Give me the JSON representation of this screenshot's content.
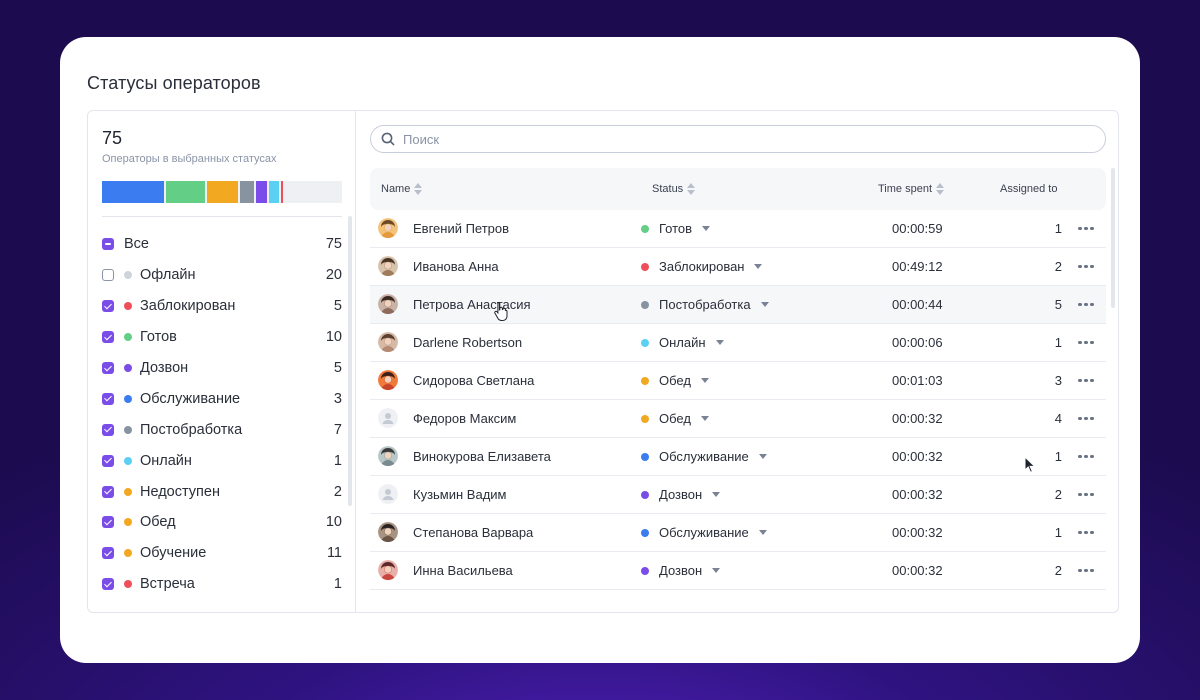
{
  "page": {
    "title": "Статусы операторов"
  },
  "summary": {
    "total": "75",
    "caption": "Операторы в выбранных статусах",
    "bar_segments": [
      {
        "color": "#3b7cf0",
        "fraction": 0.26
      },
      {
        "color": "#63cf86",
        "fraction": 0.16
      },
      {
        "color": "#f3a821",
        "fraction": 0.13
      },
      {
        "color": "#8794a0",
        "fraction": 0.06
      },
      {
        "color": "#7b4de8",
        "fraction": 0.045
      },
      {
        "color": "#5cd0f2",
        "fraction": 0.04
      },
      {
        "color": "#ee4f5a",
        "fraction": 0.01
      }
    ]
  },
  "filters": [
    {
      "label": "Все",
      "count": "75",
      "state": "partial",
      "dot": null
    },
    {
      "label": "Офлайн",
      "count": "20",
      "state": "off",
      "dot": "#cfd3da"
    },
    {
      "label": "Заблокирован",
      "count": "5",
      "state": "on",
      "dot": "#ee4f5a"
    },
    {
      "label": "Готов",
      "count": "10",
      "state": "on",
      "dot": "#63cf86"
    },
    {
      "label": "Дозвон",
      "count": "5",
      "state": "on",
      "dot": "#7b4de8"
    },
    {
      "label": "Обслуживание",
      "count": "3",
      "state": "on",
      "dot": "#3b7cf0"
    },
    {
      "label": "Постобработка",
      "count": "7",
      "state": "on",
      "dot": "#8794a0"
    },
    {
      "label": "Онлайн",
      "count": "1",
      "state": "on",
      "dot": "#5cd0f2"
    },
    {
      "label": "Недоступен",
      "count": "2",
      "state": "on",
      "dot": "#f3a821"
    },
    {
      "label": "Обед",
      "count": "10",
      "state": "on",
      "dot": "#f3a821"
    },
    {
      "label": "Обучение",
      "count": "11",
      "state": "on",
      "dot": "#f3a821"
    },
    {
      "label": "Встреча",
      "count": "1",
      "state": "on",
      "dot": "#ee4f5a"
    }
  ],
  "search": {
    "placeholder": "Поиск",
    "value": ""
  },
  "table": {
    "columns": {
      "name": "Name",
      "status": "Status",
      "time": "Time spent",
      "assigned": "Assigned to"
    },
    "rows": [
      {
        "name": "Евгений Петров",
        "status": "Готов",
        "status_color": "#63cf86",
        "time": "00:00:59",
        "assigned": "1",
        "avatar": "photo-1"
      },
      {
        "name": "Иванова Анна",
        "status": "Заблокирован",
        "status_color": "#ee4f5a",
        "time": "00:49:12",
        "assigned": "2",
        "avatar": "photo-2"
      },
      {
        "name": "Петрова Анастасия",
        "status": "Постобработка",
        "status_color": "#8794a0",
        "time": "00:00:44",
        "assigned": "5",
        "avatar": "photo-3"
      },
      {
        "name": "Darlene Robertson",
        "status": "Онлайн",
        "status_color": "#5cd0f2",
        "time": "00:00:06",
        "assigned": "1",
        "avatar": "photo-4"
      },
      {
        "name": "Сидорова Светлана",
        "status": "Обед",
        "status_color": "#f3a821",
        "time": "00:01:03",
        "assigned": "3",
        "avatar": "photo-5"
      },
      {
        "name": "Федоров Максим",
        "status": "Обед",
        "status_color": "#f3a821",
        "time": "00:00:32",
        "assigned": "4",
        "avatar": "placeholder"
      },
      {
        "name": "Винокурова Елизавета",
        "status": "Обслуживание",
        "status_color": "#3b7cf0",
        "time": "00:00:32",
        "assigned": "1",
        "avatar": "photo-6"
      },
      {
        "name": "Кузьмин Вадим",
        "status": "Дозвон",
        "status_color": "#7b4de8",
        "time": "00:00:32",
        "assigned": "2",
        "avatar": "placeholder"
      },
      {
        "name": "Степанова Варвара",
        "status": "Обслуживание",
        "status_color": "#3b7cf0",
        "time": "00:00:32",
        "assigned": "1",
        "avatar": "photo-7"
      },
      {
        "name": "Инна Васильева",
        "status": "Дозвон",
        "status_color": "#7b4de8",
        "time": "00:00:32",
        "assigned": "2",
        "avatar": "photo-8"
      }
    ]
  }
}
